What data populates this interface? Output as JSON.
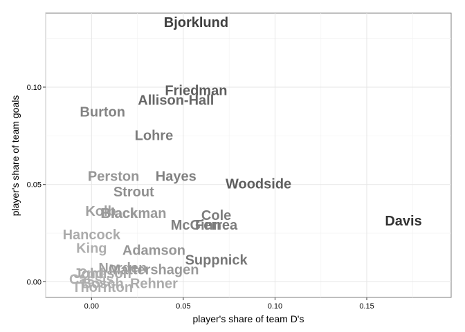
{
  "chart_data": {
    "type": "scatter",
    "title": "",
    "xlabel": "player's share of team D's",
    "ylabel": "player's share of team goals",
    "xlim": [
      -0.025,
      0.196
    ],
    "ylim": [
      -0.008,
      0.138
    ],
    "x_ticks": [
      0.0,
      0.05,
      0.1,
      0.15
    ],
    "x_tick_labels": [
      "0.00",
      "0.05",
      "0.10",
      "0.15"
    ],
    "y_ticks": [
      0.0,
      0.05,
      0.1
    ],
    "y_tick_labels": [
      "0.00",
      "0.05",
      "0.10"
    ],
    "grid": true,
    "legend": "none",
    "marker": "text label colored from light grey (low) to dark grey (high)",
    "points": [
      {
        "label": "Bjorklund",
        "x": 0.057,
        "y": 0.133,
        "shade": 0.92
      },
      {
        "label": "Friedman",
        "x": 0.057,
        "y": 0.098,
        "shade": 0.72
      },
      {
        "label": "Allison-Hall",
        "x": 0.046,
        "y": 0.093,
        "shade": 0.66
      },
      {
        "label": "Burton",
        "x": 0.006,
        "y": 0.087,
        "shade": 0.48
      },
      {
        "label": "Lohre",
        "x": 0.034,
        "y": 0.075,
        "shade": 0.52
      },
      {
        "label": "Perston",
        "x": 0.012,
        "y": 0.054,
        "shade": 0.36
      },
      {
        "label": "Hayes",
        "x": 0.046,
        "y": 0.054,
        "shade": 0.5
      },
      {
        "label": "Woodside",
        "x": 0.091,
        "y": 0.05,
        "shade": 0.72
      },
      {
        "label": "Strout",
        "x": 0.023,
        "y": 0.046,
        "shade": 0.4
      },
      {
        "label": "Kolb",
        "x": 0.005,
        "y": 0.036,
        "shade": 0.3
      },
      {
        "label": "Black",
        "x": 0.015,
        "y": 0.035,
        "shade": 0.3
      },
      {
        "label": "Blackman",
        "x": 0.023,
        "y": 0.035,
        "shade": 0.34
      },
      {
        "label": "Cole",
        "x": 0.068,
        "y": 0.034,
        "shade": 0.52
      },
      {
        "label": "McGinn",
        "x": 0.057,
        "y": 0.029,
        "shade": 0.5
      },
      {
        "label": "Ferrea",
        "x": 0.068,
        "y": 0.029,
        "shade": 0.54
      },
      {
        "label": "Davis",
        "x": 0.17,
        "y": 0.031,
        "shade": 1.0
      },
      {
        "label": "Hancock",
        "x": 0.0,
        "y": 0.024,
        "shade": 0.22
      },
      {
        "label": "King",
        "x": 0.0,
        "y": 0.017,
        "shade": 0.2
      },
      {
        "label": "Adamson",
        "x": 0.034,
        "y": 0.016,
        "shade": 0.36
      },
      {
        "label": "Suppnick",
        "x": 0.068,
        "y": 0.011,
        "shade": 0.56
      },
      {
        "label": "Norden",
        "x": 0.017,
        "y": 0.007,
        "shade": 0.3
      },
      {
        "label": "Mattershagen",
        "x": 0.034,
        "y": 0.006,
        "shade": 0.34
      },
      {
        "label": "Johnson",
        "x": 0.006,
        "y": 0.004,
        "shade": 0.24
      },
      {
        "label": "2nd",
        "x": 0.0,
        "y": 0.004,
        "shade": 0.2
      },
      {
        "label": "Cassis",
        "x": 0.0,
        "y": 0.001,
        "shade": 0.18
      },
      {
        "label": "Bosch",
        "x": 0.006,
        "y": -0.001,
        "shade": 0.2
      },
      {
        "label": "Rehner",
        "x": 0.034,
        "y": -0.001,
        "shade": 0.22
      },
      {
        "label": "Thornton",
        "x": 0.006,
        "y": -0.003,
        "shade": 0.2
      }
    ]
  }
}
